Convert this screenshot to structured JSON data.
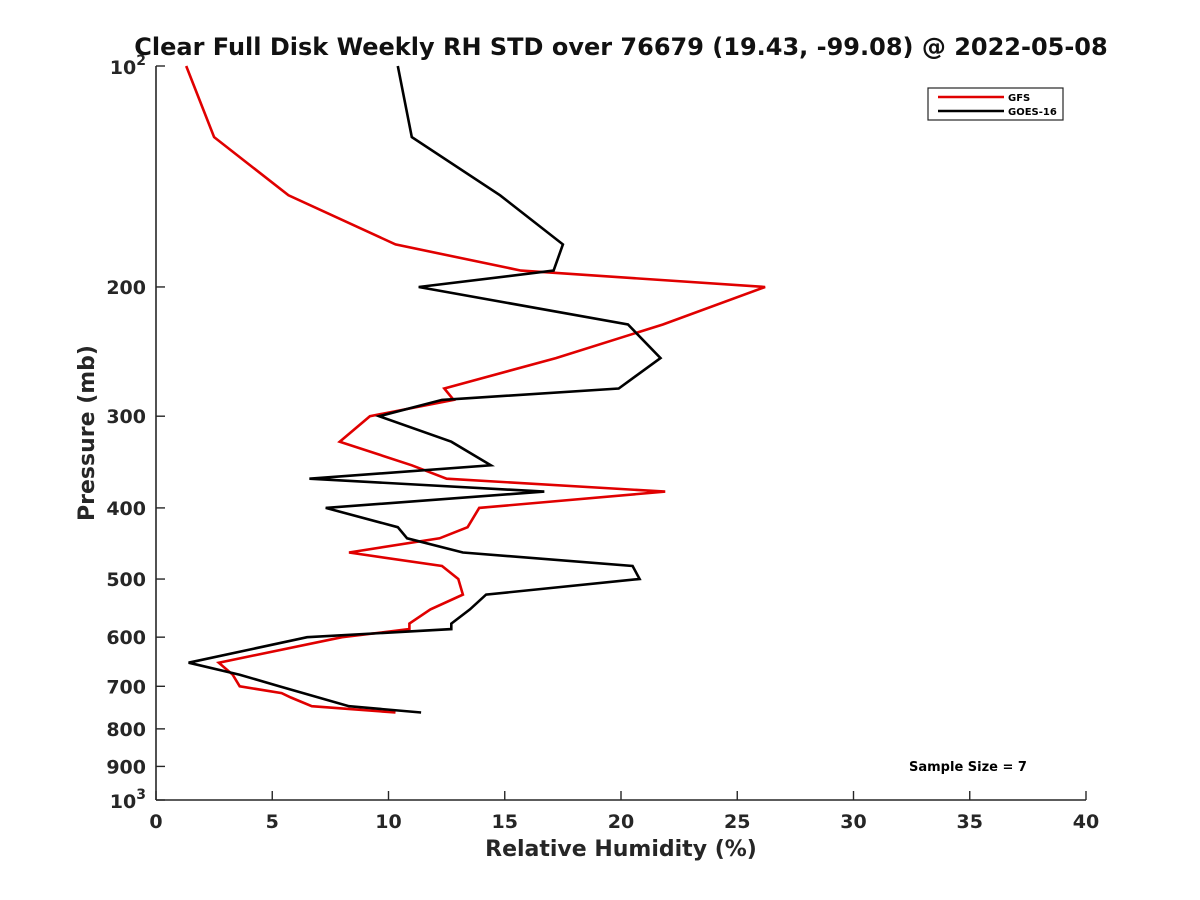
{
  "chart_data": {
    "type": "line",
    "title": "Clear Full Disk Weekly RH STD over 76679 (19.43, -99.08) @ 2022-05-08",
    "xlabel": "Relative Humidity (%)",
    "ylabel": "Pressure (mb)",
    "xlim": [
      0,
      40
    ],
    "ylim": [
      100,
      1000
    ],
    "y_scale": "log",
    "y_reversed": true,
    "x_ticks": [
      0,
      5,
      10,
      15,
      20,
      25,
      30,
      35,
      40
    ],
    "y_ticks": [
      {
        "value": 100,
        "base": "10",
        "exp": "2"
      },
      {
        "value": 200,
        "label": "200"
      },
      {
        "value": 300,
        "label": "300"
      },
      {
        "value": 400,
        "label": "400"
      },
      {
        "value": 500,
        "label": "500"
      },
      {
        "value": 600,
        "label": "600"
      },
      {
        "value": 700,
        "label": "700"
      },
      {
        "value": 800,
        "label": "800"
      },
      {
        "value": 900,
        "label": "900"
      },
      {
        "value": 1000,
        "base": "10",
        "exp": "3"
      }
    ],
    "grid": false,
    "legend_position": "top-right",
    "series": [
      {
        "name": "GFS",
        "color": "#e00000",
        "points": [
          [
            1.3,
            100
          ],
          [
            2.5,
            125
          ],
          [
            5.7,
            150
          ],
          [
            10.3,
            175
          ],
          [
            15.7,
            190
          ],
          [
            26.2,
            200
          ],
          [
            21.8,
            225
          ],
          [
            17.2,
            250
          ],
          [
            12.4,
            275
          ],
          [
            12.8,
            285
          ],
          [
            9.2,
            300
          ],
          [
            7.9,
            325
          ],
          [
            11.0,
            350
          ],
          [
            12.5,
            365
          ],
          [
            21.9,
            380
          ],
          [
            13.9,
            400
          ],
          [
            13.4,
            425
          ],
          [
            12.2,
            440
          ],
          [
            8.3,
            460
          ],
          [
            12.3,
            480
          ],
          [
            13.0,
            500
          ],
          [
            13.2,
            525
          ],
          [
            11.8,
            550
          ],
          [
            10.9,
            575
          ],
          [
            10.9,
            585
          ],
          [
            8.0,
            600
          ],
          [
            2.7,
            650
          ],
          [
            3.3,
            675
          ],
          [
            3.6,
            700
          ],
          [
            5.4,
            715
          ],
          [
            5.8,
            725
          ],
          [
            6.7,
            745
          ],
          [
            10.3,
            760
          ]
        ]
      },
      {
        "name": "GOES-16",
        "color": "#000000",
        "points": [
          [
            10.4,
            100
          ],
          [
            11.0,
            125
          ],
          [
            14.8,
            150
          ],
          [
            17.5,
            175
          ],
          [
            17.1,
            190
          ],
          [
            11.3,
            200
          ],
          [
            20.3,
            225
          ],
          [
            21.7,
            250
          ],
          [
            19.9,
            275
          ],
          [
            12.3,
            285
          ],
          [
            9.6,
            300
          ],
          [
            12.7,
            325
          ],
          [
            14.4,
            350
          ],
          [
            6.6,
            365
          ],
          [
            16.7,
            380
          ],
          [
            7.3,
            400
          ],
          [
            10.4,
            425
          ],
          [
            10.8,
            440
          ],
          [
            13.2,
            460
          ],
          [
            20.5,
            480
          ],
          [
            20.8,
            500
          ],
          [
            14.2,
            525
          ],
          [
            13.5,
            550
          ],
          [
            12.7,
            575
          ],
          [
            12.7,
            585
          ],
          [
            6.5,
            600
          ],
          [
            1.4,
            650
          ],
          [
            3.6,
            675
          ],
          [
            5.3,
            700
          ],
          [
            8.3,
            745
          ],
          [
            11.4,
            760
          ]
        ]
      }
    ],
    "annotation": "Sample Size = 7"
  }
}
